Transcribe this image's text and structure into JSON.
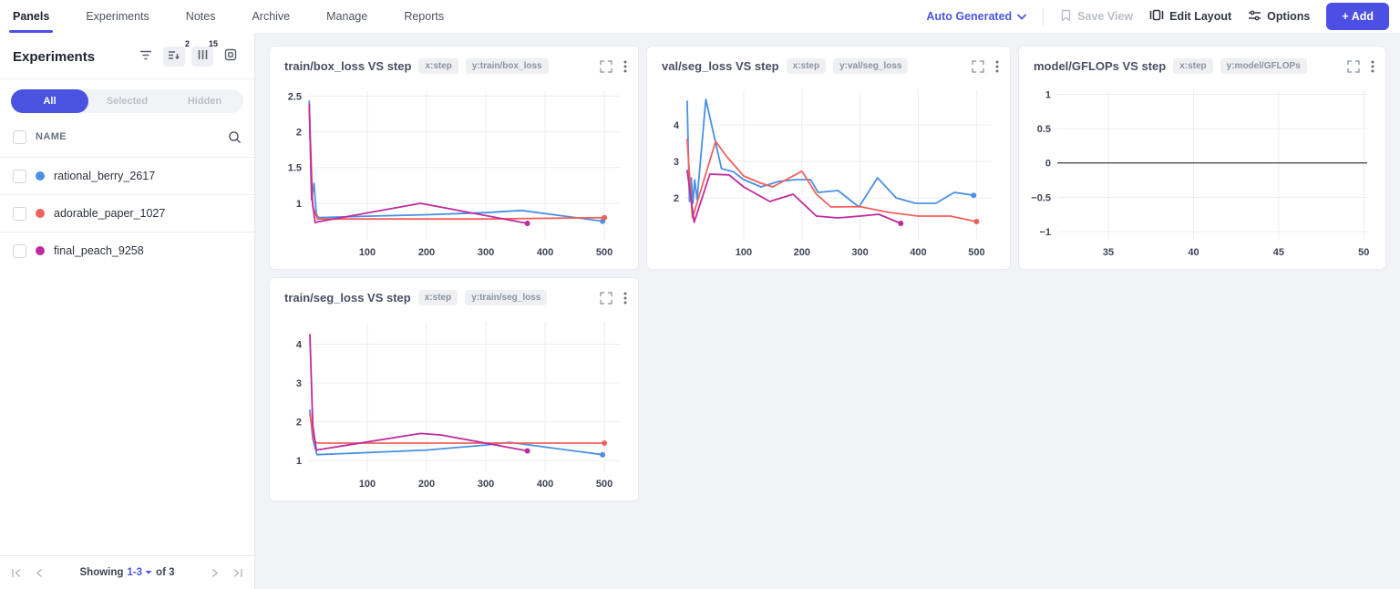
{
  "nav": {
    "tabs": [
      {
        "label": "Panels",
        "active": true
      },
      {
        "label": "Experiments",
        "active": false
      },
      {
        "label": "Notes",
        "active": false
      },
      {
        "label": "Archive",
        "active": false
      },
      {
        "label": "Manage",
        "active": false
      },
      {
        "label": "Reports",
        "active": false
      }
    ]
  },
  "toolbar": {
    "view_selector": "Auto Generated",
    "save_view": "Save View",
    "edit_layout": "Edit Layout",
    "options": "Options",
    "add": "+ Add"
  },
  "colors": {
    "accent": "#4a52e0",
    "add_button": "#4c4fe4",
    "run_blue": "#4a90e2",
    "run_red": "#f0615c",
    "run_magenta": "#bf2b9e"
  },
  "sidebar": {
    "title": "Experiments",
    "icons": {
      "filter": "filter-icon",
      "sort_badge": "2",
      "columns_badge": "15"
    },
    "tabs": [
      {
        "label": "All",
        "active": true
      },
      {
        "label": "Selected",
        "active": false
      },
      {
        "label": "Hidden",
        "active": false
      }
    ],
    "name_header": "NAME",
    "experiments": [
      {
        "name": "rational_berry_2617",
        "color": "#4a90e2"
      },
      {
        "name": "adorable_paper_1027",
        "color": "#f0615c"
      },
      {
        "name": "final_peach_9258",
        "color": "#bf2b9e"
      }
    ],
    "pagination": {
      "showing": "Showing",
      "range": "1-3",
      "of": "of 3"
    }
  },
  "panels": [
    {
      "title": "train/box_loss VS step",
      "x_badge": "x:step",
      "y_badge": "y:train/box_loss"
    },
    {
      "title": "val/seg_loss VS step",
      "x_badge": "x:step",
      "y_badge": "y:val/seg_loss"
    },
    {
      "title": "model/GFLOPs VS step",
      "x_badge": "x:step",
      "y_badge": "y:model/GFLOPs"
    },
    {
      "title": "train/seg_loss VS step",
      "x_badge": "x:step",
      "y_badge": "y:train/seg_loss"
    }
  ],
  "chart_data": [
    {
      "type": "line",
      "title": "train/box_loss VS step",
      "xlabel": "step",
      "ylabel": "train/box_loss",
      "xlim": [
        0,
        526
      ],
      "ylim": [
        0.49,
        2.58
      ],
      "xticks": [
        100,
        200,
        300,
        400,
        500
      ],
      "yticks": [
        1,
        1.5,
        2,
        2.5
      ],
      "grid": true,
      "series": [
        {
          "name": "rational_berry_2617",
          "color": "#4a90e2",
          "x": [
            2,
            6,
            10,
            14,
            18,
            100,
            200,
            300,
            360,
            497
          ],
          "y": [
            2.43,
            1.05,
            1.28,
            0.85,
            0.8,
            0.82,
            0.84,
            0.87,
            0.9,
            0.75
          ]
        },
        {
          "name": "adorable_paper_1027",
          "color": "#f0615c",
          "x": [
            2,
            8,
            16,
            100,
            300,
            500
          ],
          "y": [
            2.32,
            0.95,
            0.78,
            0.78,
            0.78,
            0.8
          ]
        },
        {
          "name": "final_peach_9258",
          "color": "#bf2b9e",
          "x": [
            2,
            6,
            12,
            16,
            190,
            370
          ],
          "y": [
            2.38,
            1.1,
            0.73,
            0.74,
            1.0,
            0.72
          ]
        }
      ]
    },
    {
      "type": "line",
      "title": "val/seg_loss VS step",
      "xlabel": "step",
      "ylabel": "val/seg_loss",
      "xlim": [
        0,
        526
      ],
      "ylim": [
        0.85,
        4.95
      ],
      "xticks": [
        100,
        200,
        300,
        400,
        500
      ],
      "yticks": [
        2,
        3,
        4
      ],
      "grid": true,
      "series": [
        {
          "name": "rational_berry_2617",
          "color": "#4a90e2",
          "x": [
            3,
            7,
            10,
            13,
            16,
            20,
            35,
            62,
            82,
            100,
            130,
            160,
            190,
            215,
            228,
            262,
            298,
            330,
            362,
            395,
            430,
            462,
            495
          ],
          "y": [
            4.65,
            1.9,
            2.55,
            1.85,
            2.5,
            1.95,
            4.7,
            2.8,
            2.72,
            2.5,
            2.3,
            2.45,
            2.5,
            2.5,
            2.15,
            2.2,
            1.75,
            2.55,
            2.0,
            1.85,
            1.85,
            2.15,
            2.07
          ]
        },
        {
          "name": "adorable_paper_1027",
          "color": "#f0615c",
          "x": [
            3,
            12,
            52,
            70,
            100,
            130,
            150,
            200,
            225,
            250,
            300,
            350,
            400,
            455,
            500
          ],
          "y": [
            3.6,
            1.45,
            3.55,
            3.15,
            2.6,
            2.4,
            2.3,
            2.73,
            2.1,
            1.75,
            1.76,
            1.6,
            1.5,
            1.5,
            1.35
          ]
        },
        {
          "name": "final_peach_9258",
          "color": "#bf2b9e",
          "x": [
            3,
            15,
            42,
            75,
            100,
            145,
            185,
            225,
            262,
            300,
            332,
            370
          ],
          "y": [
            2.75,
            1.33,
            2.65,
            2.63,
            2.3,
            1.9,
            2.1,
            1.5,
            1.45,
            1.5,
            1.55,
            1.3
          ]
        }
      ]
    },
    {
      "type": "line",
      "title": "model/GFLOPs VS step",
      "xlabel": "step",
      "ylabel": "model/GFLOPs",
      "xlim": [
        32,
        50.2
      ],
      "ylim": [
        -1.12,
        1.06
      ],
      "xticks": [
        35,
        40,
        45,
        50
      ],
      "yticks": [
        -1,
        -0.5,
        0,
        0.5,
        1
      ],
      "grid": true,
      "zeroline": true,
      "series": []
    },
    {
      "type": "line",
      "title": "train/seg_loss VS step",
      "xlabel": "step",
      "ylabel": "train/seg_loss",
      "xlim": [
        0,
        526
      ],
      "ylim": [
        0.72,
        4.58
      ],
      "xticks": [
        100,
        200,
        300,
        400,
        500
      ],
      "yticks": [
        1,
        2,
        3,
        4
      ],
      "grid": true,
      "series": [
        {
          "name": "rational_berry_2617",
          "color": "#4a90e2",
          "x": [
            3,
            8,
            15,
            200,
            300,
            340,
            497
          ],
          "y": [
            2.3,
            1.55,
            1.15,
            1.27,
            1.4,
            1.47,
            1.15
          ]
        },
        {
          "name": "adorable_paper_1027",
          "color": "#f0615c",
          "x": [
            3,
            10,
            16,
            200,
            500
          ],
          "y": [
            2.2,
            1.5,
            1.45,
            1.45,
            1.45
          ]
        },
        {
          "name": "final_peach_9258",
          "color": "#bf2b9e",
          "x": [
            3,
            8,
            14,
            190,
            225,
            370
          ],
          "y": [
            4.25,
            1.9,
            1.27,
            1.7,
            1.66,
            1.25
          ]
        }
      ]
    }
  ]
}
